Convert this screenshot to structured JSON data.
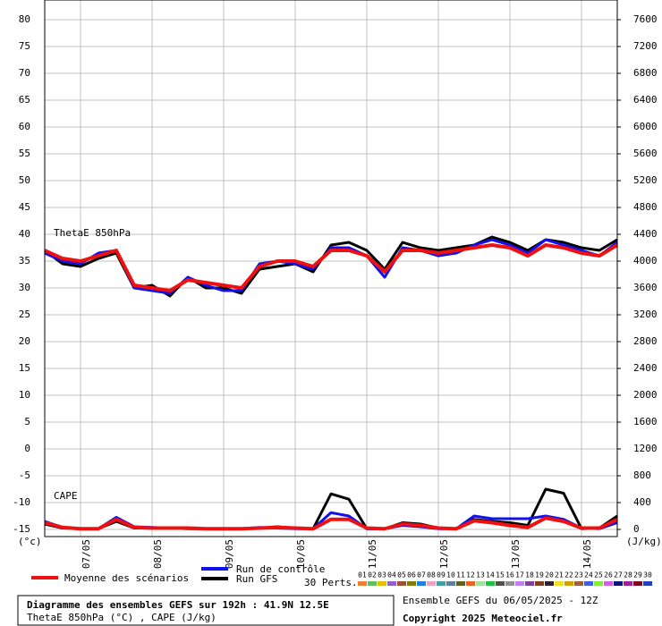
{
  "chart_data": {
    "type": "line",
    "title": "Diagramme des ensembles GEFS sur 192h : 41.9N 12.5E",
    "subtitle": "ThetaE 850hPa (°C) , CAPE (J/kg)",
    "run_info": "Ensemble GEFS du 06/05/2025 - 12Z",
    "copyright": "Copyright 2025 Meteociel.fr",
    "y_label": "(°c)",
    "y2_label": "(J/kg)",
    "thetae_label": "ThetaE 850hPa",
    "cape_label": "CAPE",
    "x": [
      0,
      6,
      12,
      18,
      24,
      30,
      36,
      42,
      48,
      54,
      60,
      66,
      72,
      78,
      84,
      90,
      96,
      102,
      108,
      114,
      120,
      126,
      132,
      138,
      144,
      150,
      156,
      162,
      168,
      174,
      180,
      186,
      192
    ],
    "xlim": [
      0,
      192
    ],
    "xticks": [
      {
        "value": 12,
        "label": "07/05"
      },
      {
        "value": 36,
        "label": "08/05"
      },
      {
        "value": 60,
        "label": "09/05"
      },
      {
        "value": 84,
        "label": "10/05"
      },
      {
        "value": 108,
        "label": "11/05"
      },
      {
        "value": 132,
        "label": "12/05"
      },
      {
        "value": 156,
        "label": "13/05"
      },
      {
        "value": 180,
        "label": "14/05"
      }
    ],
    "ylim": [
      -16.33,
      83.67
    ],
    "yticks": [
      -15,
      -10,
      -5,
      0,
      5,
      10,
      15,
      20,
      25,
      30,
      35,
      40,
      45,
      50,
      55,
      60,
      65,
      70,
      75,
      80
    ],
    "y2lim": [
      -106.7,
      7893.3
    ],
    "y2ticks": [
      0,
      400,
      800,
      1200,
      1600,
      2000,
      2400,
      2800,
      3200,
      3600,
      4000,
      4400,
      4800,
      5200,
      5600,
      6000,
      6400,
      6800,
      7200,
      7600
    ],
    "grid": true,
    "series": [
      {
        "name": "Moyenne des scénarios",
        "color": "#ee1111",
        "values": [
          37,
          35.5,
          35,
          36,
          37,
          30.5,
          30,
          29.5,
          31.5,
          31,
          30.5,
          30,
          34,
          35,
          35,
          34,
          37,
          37,
          36,
          33,
          37,
          37,
          36.5,
          37,
          37.5,
          38,
          37.5,
          36,
          38,
          37.5,
          36.5,
          36,
          38
        ]
      },
      {
        "name": "Run de contrôle",
        "color": "#1111ee",
        "values": [
          36.5,
          35,
          34.5,
          36.5,
          37,
          30,
          29.5,
          29,
          32,
          30.5,
          29.5,
          29.5,
          34.5,
          35,
          34.5,
          33.5,
          37.5,
          37.5,
          36,
          32,
          37.5,
          37,
          36,
          36.5,
          38,
          39,
          38,
          36.5,
          39,
          38,
          37,
          36,
          38.5
        ]
      },
      {
        "name": "Run GFS",
        "color": "#000000",
        "values": [
          37,
          34.5,
          34,
          35.5,
          36.5,
          30,
          30.5,
          28.5,
          32,
          30,
          30,
          29,
          33.5,
          34,
          34.5,
          33,
          38,
          38.5,
          37,
          33.5,
          38.5,
          37.5,
          37,
          37.5,
          38,
          39.5,
          38.5,
          37,
          39,
          38.5,
          37.5,
          37,
          39
        ]
      }
    ],
    "cape_series": [
      {
        "axis": "y2",
        "color": "#ee1111",
        "values": [
          100,
          30,
          10,
          10,
          150,
          30,
          20,
          20,
          20,
          10,
          10,
          10,
          20,
          30,
          20,
          10,
          150,
          150,
          20,
          10,
          80,
          60,
          20,
          10,
          130,
          100,
          60,
          30,
          170,
          120,
          20,
          20,
          150
        ]
      },
      {
        "axis": "y2",
        "color": "#1111ee",
        "values": [
          120,
          30,
          10,
          10,
          180,
          40,
          30,
          20,
          20,
          10,
          10,
          10,
          30,
          20,
          10,
          10,
          250,
          200,
          10,
          10,
          60,
          40,
          10,
          10,
          200,
          160,
          160,
          160,
          200,
          150,
          20,
          10,
          100
        ]
      },
      {
        "axis": "y2",
        "color": "#000000",
        "values": [
          80,
          20,
          10,
          10,
          120,
          20,
          20,
          20,
          10,
          10,
          10,
          10,
          20,
          40,
          20,
          10,
          530,
          450,
          10,
          10,
          100,
          80,
          20,
          10,
          150,
          120,
          100,
          60,
          600,
          540,
          10,
          20,
          200
        ]
      }
    ],
    "perturbations_label": "30 Perts.",
    "perturbations": [
      {
        "name": "01",
        "color": "#f08030"
      },
      {
        "name": "02",
        "color": "#60c060"
      },
      {
        "name": "03",
        "color": "#e0c000"
      },
      {
        "name": "04",
        "color": "#9060d0"
      },
      {
        "name": "05",
        "color": "#a05030"
      },
      {
        "name": "06",
        "color": "#808000"
      },
      {
        "name": "07",
        "color": "#2080e0"
      },
      {
        "name": "08",
        "color": "#f0a0c0"
      },
      {
        "name": "09",
        "color": "#40a0a0"
      },
      {
        "name": "10",
        "color": "#6080a0"
      },
      {
        "name": "11",
        "color": "#606020"
      },
      {
        "name": "12",
        "color": "#f06020"
      },
      {
        "name": "13",
        "color": "#a0e0a0"
      },
      {
        "name": "14",
        "color": "#20c040"
      },
      {
        "name": "15",
        "color": "#505050"
      },
      {
        "name": "16",
        "color": "#909090"
      },
      {
        "name": "17",
        "color": "#c080f0"
      },
      {
        "name": "18",
        "color": "#8040a0"
      },
      {
        "name": "19",
        "color": "#804020"
      },
      {
        "name": "20",
        "color": "#302030"
      },
      {
        "name": "21",
        "color": "#f0e020"
      },
      {
        "name": "22",
        "color": "#d0a000"
      },
      {
        "name": "23",
        "color": "#a06040"
      },
      {
        "name": "24",
        "color": "#4060e0"
      },
      {
        "name": "25",
        "color": "#80f040"
      },
      {
        "name": "26",
        "color": "#d060e0"
      },
      {
        "name": "27",
        "color": "#101080"
      },
      {
        "name": "28",
        "color": "#a020a0"
      },
      {
        "name": "29",
        "color": "#800020"
      },
      {
        "name": "30",
        "color": "#2040c0"
      }
    ]
  }
}
